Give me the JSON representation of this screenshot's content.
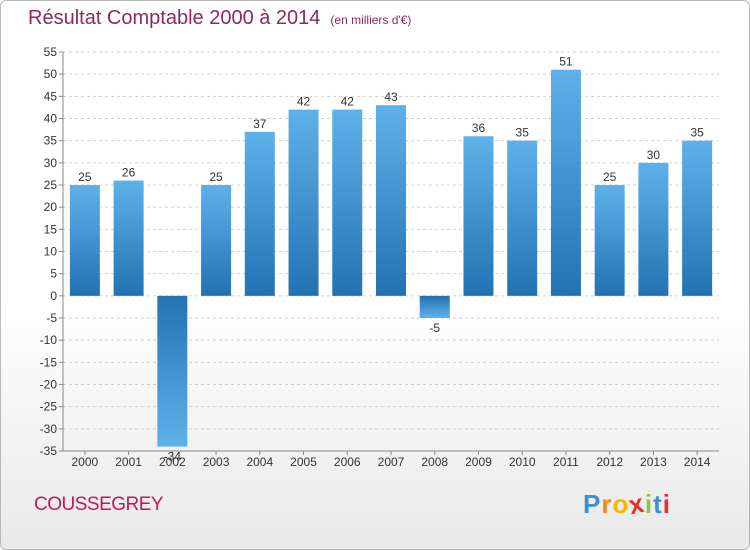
{
  "header": {
    "title": "Résultat Comptable 2000 à 2014",
    "subtitle": "(en milliers d'€)"
  },
  "footer": {
    "commune": "COUSSEGREY",
    "brand_letters": [
      "P",
      "r",
      "o",
      "x",
      "i",
      "t",
      "i"
    ],
    "brand_colors": [
      "#3f8fd6",
      "#f08a1d",
      "#f5b800",
      "#e2312d",
      "#8cc63f",
      "#3f8fd6",
      "#e2312d"
    ]
  },
  "colors": {
    "bar_dark": "#2372b2",
    "bar_light": "#5fb1ea",
    "grid": "#cfcfcf",
    "text": "#333333"
  },
  "chart_data": {
    "type": "bar",
    "title": "Résultat Comptable 2000 à 2014",
    "subtitle": "(en milliers d'€)",
    "categories": [
      "2000",
      "2001",
      "2002",
      "2003",
      "2004",
      "2005",
      "2006",
      "2007",
      "2008",
      "2009",
      "2010",
      "2011",
      "2012",
      "2013",
      "2014"
    ],
    "values": [
      25,
      26,
      -34,
      25,
      37,
      42,
      42,
      43,
      -5,
      36,
      35,
      51,
      25,
      30,
      35
    ],
    "ylim": [
      -35,
      55
    ],
    "yticks": [
      55,
      50,
      45,
      40,
      35,
      30,
      25,
      20,
      15,
      10,
      5,
      0,
      -5,
      -10,
      -15,
      -20,
      -25,
      -30,
      -35
    ],
    "xlabel": "",
    "ylabel": "",
    "grid": true
  }
}
